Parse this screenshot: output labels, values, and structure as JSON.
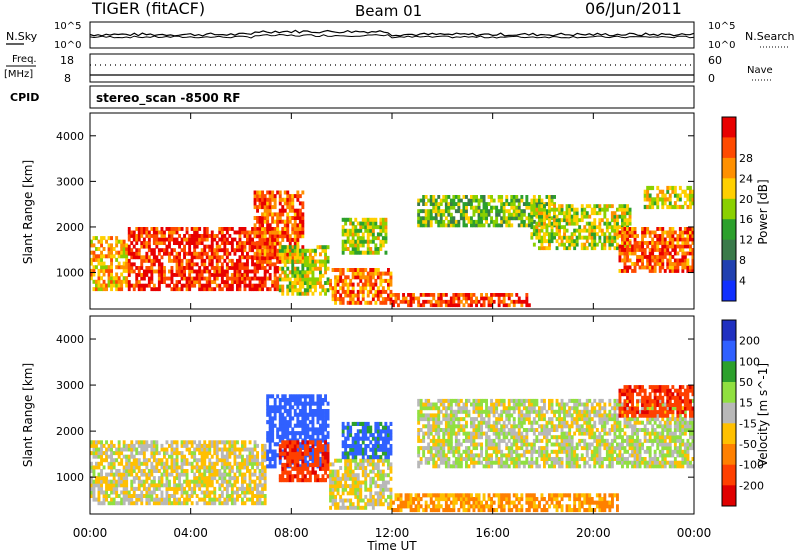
{
  "header": {
    "station": "TIGER (fitACF)",
    "beam": "Beam 01",
    "date": "06/Jun/2011"
  },
  "top_panels": {
    "nsky_label": "N.Sky",
    "nsearch_label": "N.Search",
    "nsky_ticks": [
      "10^5",
      "10^0"
    ],
    "nsearch_ticks": [
      "10^5",
      "10^0"
    ],
    "freq_label": "Freq.",
    "freq_unit": "[MHz]",
    "freq_ticks": [
      "18",
      "8"
    ],
    "nave_label": "Nave",
    "nave_ticks": [
      "60",
      "0"
    ],
    "cpid_label": "CPID",
    "cpid_value": "stereo_scan -8500 RF"
  },
  "chart_data": [
    {
      "type": "heatmap",
      "name": "power",
      "ylabel": "Slant Range [km]",
      "xlabel": "Time UT",
      "xlim": [
        0,
        24
      ],
      "ylim": [
        200,
        4500
      ],
      "x_ticks": [
        "00:00",
        "04:00",
        "08:00",
        "12:00",
        "16:00",
        "20:00",
        "00:00"
      ],
      "y_ticks": [
        "1000",
        "2000",
        "3000",
        "4000"
      ],
      "colorbar": {
        "label": "Power [dB]",
        "ticks": [
          "4",
          "8",
          "12",
          "16",
          "20",
          "24",
          "28"
        ],
        "colors": [
          "#1030ff",
          "#2040b0",
          "#3a7a4a",
          "#2ca02c",
          "#8ad000",
          "#ffd000",
          "#ff9000",
          "#ff4a00",
          "#e80000"
        ]
      },
      "echo_regions": [
        {
          "t": [
            0.0,
            1.5
          ],
          "r": [
            600,
            1800
          ],
          "level": 0.7
        },
        {
          "t": [
            1.5,
            7.5
          ],
          "r": [
            600,
            2000
          ],
          "level": 0.95
        },
        {
          "t": [
            6.5,
            8.5
          ],
          "r": [
            1200,
            2800
          ],
          "level": 0.85
        },
        {
          "t": [
            7.5,
            9.5
          ],
          "r": [
            500,
            1600
          ],
          "level": 0.55
        },
        {
          "t": [
            9.5,
            12.0
          ],
          "r": [
            300,
            1100
          ],
          "level": 0.8
        },
        {
          "t": [
            10.0,
            11.8
          ],
          "r": [
            1400,
            2200
          ],
          "level": 0.55
        },
        {
          "t": [
            12.0,
            17.5
          ],
          "r": [
            250,
            550
          ],
          "level": 0.9
        },
        {
          "t": [
            13.0,
            18.5
          ],
          "r": [
            2000,
            2700
          ],
          "level": 0.45
        },
        {
          "t": [
            17.5,
            21.5
          ],
          "r": [
            1500,
            2500
          ],
          "level": 0.55
        },
        {
          "t": [
            21.0,
            24.0
          ],
          "r": [
            1000,
            2000
          ],
          "level": 0.85
        },
        {
          "t": [
            22.0,
            24.0
          ],
          "r": [
            2400,
            2900
          ],
          "level": 0.6
        }
      ]
    },
    {
      "type": "heatmap",
      "name": "velocity",
      "ylabel": "Slant Range [km]",
      "xlabel": "Time UT",
      "xlim": [
        0,
        24
      ],
      "ylim": [
        200,
        4500
      ],
      "x_ticks": [
        "00:00",
        "04:00",
        "08:00",
        "12:00",
        "16:00",
        "20:00",
        "00:00"
      ],
      "y_ticks": [
        "1000",
        "2000",
        "3000",
        "4000"
      ],
      "colorbar": {
        "label": "Velocity [m s^-1]",
        "ticks": [
          "200",
          "100",
          "50",
          "15",
          "-15",
          "-50",
          "-100",
          "-200"
        ],
        "colors": [
          "#2030c0",
          "#3060ff",
          "#2ca02c",
          "#90e040",
          "#b8b8b8",
          "#ffc000",
          "#ff8000",
          "#ff4000",
          "#e00000"
        ]
      },
      "echo_regions": [
        {
          "t": [
            0.0,
            7.0
          ],
          "r": [
            400,
            1800
          ],
          "vel": -10
        },
        {
          "t": [
            7.0,
            9.5
          ],
          "r": [
            1200,
            2800
          ],
          "vel": 150
        },
        {
          "t": [
            7.5,
            9.5
          ],
          "r": [
            900,
            1800
          ],
          "vel": -180
        },
        {
          "t": [
            9.5,
            12.0
          ],
          "r": [
            300,
            1400
          ],
          "vel": -10
        },
        {
          "t": [
            10.0,
            12.0
          ],
          "r": [
            1400,
            2200
          ],
          "vel": 120
        },
        {
          "t": [
            12.0,
            21.0
          ],
          "r": [
            250,
            650
          ],
          "vel": -60
        },
        {
          "t": [
            13.0,
            24.0
          ],
          "r": [
            1200,
            2700
          ],
          "vel": 5
        },
        {
          "t": [
            21.0,
            24.0
          ],
          "r": [
            2300,
            3000
          ],
          "vel": -180
        }
      ]
    }
  ]
}
